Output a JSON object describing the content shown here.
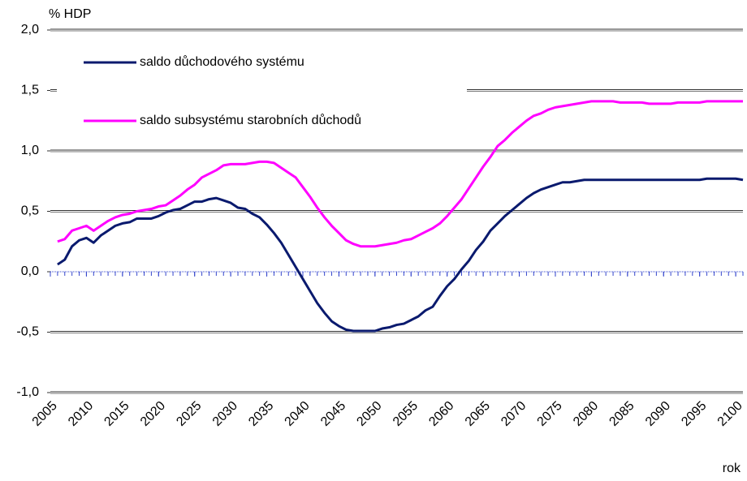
{
  "chart_data": {
    "type": "line",
    "y_label": "% HDP",
    "x_label": "rok",
    "x": [
      2006,
      2007,
      2008,
      2009,
      2010,
      2011,
      2012,
      2013,
      2014,
      2015,
      2016,
      2017,
      2018,
      2019,
      2020,
      2021,
      2022,
      2023,
      2024,
      2025,
      2026,
      2027,
      2028,
      2029,
      2030,
      2031,
      2032,
      2033,
      2034,
      2035,
      2036,
      2037,
      2038,
      2039,
      2040,
      2041,
      2042,
      2043,
      2044,
      2045,
      2046,
      2047,
      2048,
      2049,
      2050,
      2051,
      2052,
      2053,
      2054,
      2055,
      2056,
      2057,
      2058,
      2059,
      2060,
      2061,
      2062,
      2063,
      2064,
      2065,
      2066,
      2067,
      2068,
      2069,
      2070,
      2071,
      2072,
      2073,
      2074,
      2075,
      2076,
      2077,
      2078,
      2079,
      2080,
      2081,
      2082,
      2083,
      2084,
      2085,
      2086,
      2087,
      2088,
      2089,
      2090,
      2091,
      2092,
      2093,
      2094,
      2095,
      2096,
      2097,
      2098,
      2099,
      2100,
      2101
    ],
    "series": [
      {
        "name": "saldo důchodového systému",
        "color": "#0a1a6e",
        "values": [
          0.06,
          0.1,
          0.21,
          0.26,
          0.28,
          0.24,
          0.3,
          0.34,
          0.38,
          0.4,
          0.41,
          0.44,
          0.44,
          0.44,
          0.46,
          0.49,
          0.51,
          0.52,
          0.55,
          0.58,
          0.58,
          0.6,
          0.61,
          0.59,
          0.57,
          0.53,
          0.52,
          0.48,
          0.45,
          0.39,
          0.32,
          0.24,
          0.14,
          0.04,
          -0.06,
          -0.16,
          -0.26,
          -0.34,
          -0.41,
          -0.45,
          -0.48,
          -0.49,
          -0.49,
          -0.49,
          -0.49,
          -0.47,
          -0.46,
          -0.44,
          -0.43,
          -0.4,
          -0.37,
          -0.32,
          -0.29,
          -0.2,
          -0.12,
          -0.06,
          0.02,
          0.09,
          0.18,
          0.25,
          0.34,
          0.4,
          0.46,
          0.51,
          0.56,
          0.61,
          0.65,
          0.68,
          0.7,
          0.72,
          0.74,
          0.74,
          0.75,
          0.76,
          0.76,
          0.76,
          0.76,
          0.76,
          0.76,
          0.76,
          0.76,
          0.76,
          0.76,
          0.76,
          0.76,
          0.76,
          0.76,
          0.76,
          0.76,
          0.76,
          0.77,
          0.77,
          0.77,
          0.77,
          0.77,
          0.76
        ]
      },
      {
        "name": "saldo subsystému starobních důchodů",
        "color": "#ff00ff",
        "values": [
          0.25,
          0.27,
          0.34,
          0.36,
          0.38,
          0.34,
          0.38,
          0.42,
          0.45,
          0.47,
          0.48,
          0.5,
          0.51,
          0.52,
          0.54,
          0.55,
          0.59,
          0.63,
          0.68,
          0.72,
          0.78,
          0.81,
          0.84,
          0.88,
          0.89,
          0.89,
          0.89,
          0.9,
          0.91,
          0.91,
          0.9,
          0.86,
          0.82,
          0.78,
          0.7,
          0.62,
          0.53,
          0.45,
          0.38,
          0.32,
          0.26,
          0.23,
          0.21,
          0.21,
          0.21,
          0.22,
          0.23,
          0.24,
          0.26,
          0.27,
          0.3,
          0.33,
          0.36,
          0.4,
          0.46,
          0.53,
          0.6,
          0.69,
          0.78,
          0.87,
          0.95,
          1.04,
          1.09,
          1.15,
          1.2,
          1.25,
          1.29,
          1.31,
          1.34,
          1.36,
          1.37,
          1.38,
          1.39,
          1.4,
          1.41,
          1.41,
          1.41,
          1.41,
          1.4,
          1.4,
          1.4,
          1.4,
          1.39,
          1.39,
          1.39,
          1.39,
          1.4,
          1.4,
          1.4,
          1.4,
          1.41,
          1.41,
          1.41,
          1.41,
          1.41,
          1.41
        ]
      }
    ],
    "xlim": [
      2005,
      2101
    ],
    "xticks": [
      2005,
      2010,
      2015,
      2020,
      2025,
      2030,
      2035,
      2040,
      2045,
      2050,
      2055,
      2060,
      2065,
      2070,
      2075,
      2080,
      2085,
      2090,
      2095,
      2100
    ],
    "ylim": [
      -1,
      2
    ],
    "yticks": [
      {
        "value": -1,
        "label": "-1,0"
      },
      {
        "value": -0.5,
        "label": "-0,5"
      },
      {
        "value": 0,
        "label": "0,0"
      },
      {
        "value": 0.5,
        "label": "0,5"
      },
      {
        "value": 1,
        "label": "1,0"
      },
      {
        "value": 1.5,
        "label": "1,5"
      },
      {
        "value": 2,
        "label": "2,0"
      }
    ],
    "grid": true,
    "legend": "top-left"
  }
}
